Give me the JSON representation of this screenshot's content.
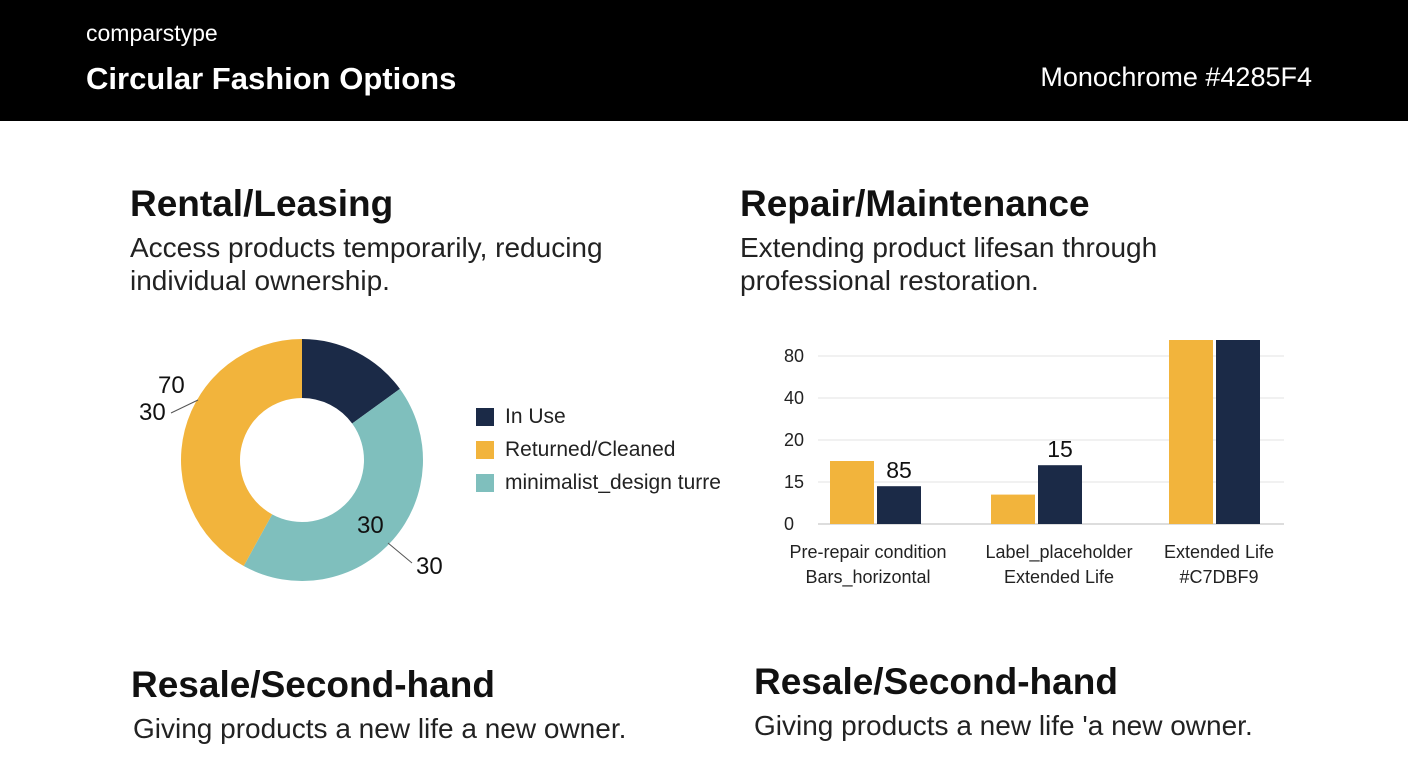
{
  "header": {
    "kicker": "comparstype",
    "title": "Circular Fashion Options",
    "meta": "Monochrome  #4285F4"
  },
  "sections": {
    "rental": {
      "title": "Rental/Leasing",
      "desc_line1": "Access products temporarily, reducing",
      "desc_line2": "individual ownership."
    },
    "repair": {
      "title": "Repair/Maintenance",
      "desc_line1": "Extending product lifesan through",
      "desc_line2": "professional restoration."
    },
    "resale_left": {
      "title": "Resale/Second-hand",
      "desc": "Giving products a new life  a new owner."
    },
    "resale_right": {
      "title": "Resale/Second-hand",
      "desc": "Giving products a new life 'a new owner."
    }
  },
  "colors": {
    "navy": "#1b2a47",
    "amber": "#f2b43c",
    "teal": "#7fbfbd",
    "header_bg": "#000000"
  },
  "chart_data": [
    {
      "type": "pie",
      "donut": true,
      "slices": [
        {
          "name": "In Use",
          "value": 15,
          "color": "#1b2a47"
        },
        {
          "name": "minimalist_design turre",
          "value": 43,
          "color": "#7fbfbd"
        },
        {
          "name": "Returned/Cleaned",
          "value": 42,
          "color": "#f2b43c"
        }
      ],
      "annotations": [
        "70",
        "30",
        "30",
        "30"
      ],
      "legend": [
        {
          "label": "In Use",
          "color": "#1b2a47"
        },
        {
          "label": "Returned/Cleaned",
          "color": "#f2b43c"
        },
        {
          "label": "minimalist_design turre",
          "color": "#7fbfbd"
        }
      ],
      "legend_position": "right"
    },
    {
      "type": "bar",
      "categories": [
        [
          "Pre-repair condition",
          "Bars_horizontal"
        ],
        [
          "Label_placeholder",
          "Extended Life"
        ],
        [
          "Extended Life",
          "#C7DBF9"
        ]
      ],
      "yticks": [
        "0",
        "15",
        "20",
        "40",
        "80"
      ],
      "series": [
        {
          "values": [
            1.5,
            0.7,
            4.7
          ],
          "color": "#f2b43c"
        },
        {
          "values": [
            0.9,
            1.4,
            5.7
          ],
          "color": "#1b2a47"
        }
      ],
      "data_labels": [
        "85",
        "15",
        "85"
      ],
      "grid": true
    }
  ]
}
